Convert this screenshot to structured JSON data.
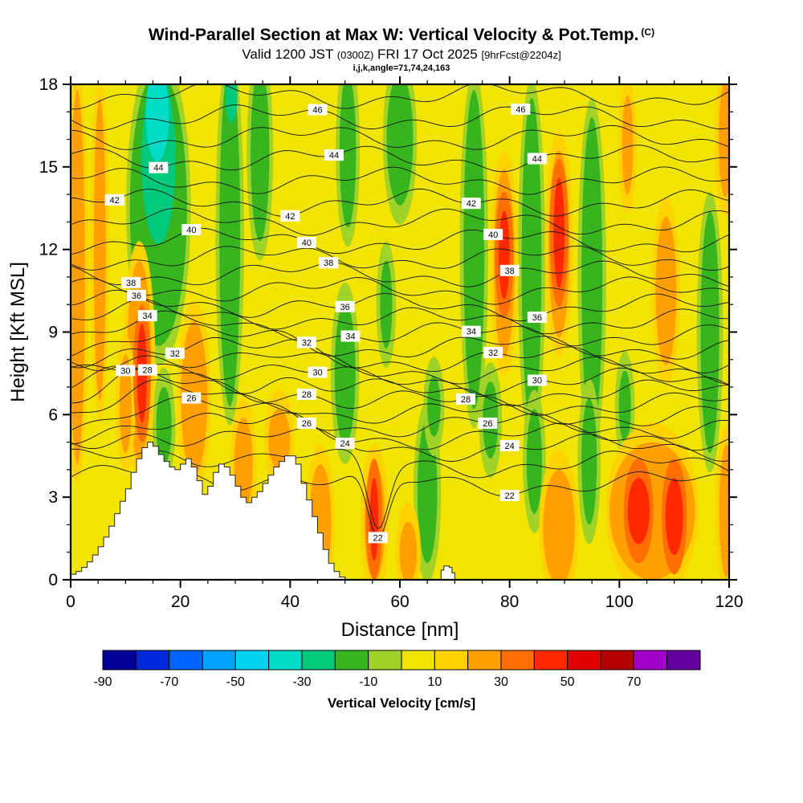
{
  "header": {
    "title": "Wind-Parallel Section at Max W: Vertical Velocity & Pot.Temp.",
    "title_unit": "(C)",
    "valid_main_1": "Valid 1200 JST",
    "valid_small_1": "(0300Z)",
    "valid_main_2": "FRI 17 Oct 2025",
    "valid_small_2": "[9hrFcst@2204z]",
    "index_line": "i,j,k,angle=71,74,24,163"
  },
  "chart_data": {
    "type": "heatmap",
    "title": "Wind-Parallel Section at Max W: Vertical Velocity & Pot.Temp. (C)",
    "subtitle": "Valid 1200 JST (0300Z) FRI 17 Oct 2025 [9hrFcst@2204z]",
    "xlabel": "Distance [nm]",
    "ylabel": "Height [Kft MSL]",
    "xlim": [
      0,
      120
    ],
    "ylim": [
      0,
      18
    ],
    "x_major_ticks": [
      0,
      20,
      40,
      60,
      80,
      100,
      120
    ],
    "x_minor_step": 5,
    "y_major_ticks": [
      0,
      3,
      6,
      9,
      12,
      15,
      18
    ],
    "y_minor_step": 1,
    "grid": false,
    "background_color": "#F0E400",
    "colorbar": {
      "label": "Vertical Velocity [cm/s]",
      "min": -90,
      "max": 90,
      "step": 10,
      "tick_values": [
        -90,
        -70,
        -50,
        -30,
        -10,
        10,
        30,
        50,
        70
      ],
      "cell_colors": [
        "#000096",
        "#0028DC",
        "#0064FF",
        "#00A0FF",
        "#00D2F0",
        "#00DCC8",
        "#00C87D",
        "#37B41E",
        "#A0D228",
        "#F0E400",
        "#FFD200",
        "#FFA000",
        "#FF6E00",
        "#FF2800",
        "#E10000",
        "#B40000",
        "#A000C8",
        "#6400A0"
      ],
      "label_color": "#1E1E8C"
    },
    "feature_colors": {
      "green": {
        "fill": "#37B41E",
        "rim": "#A0D228"
      },
      "teal": {
        "fill": "#00C87D",
        "rim": null
      },
      "cyan": {
        "fill": "#00DCC8",
        "rim": null
      },
      "orange": {
        "fill": "#FFA000",
        "rim": "#FFD200"
      },
      "red": {
        "fill": "#FF2800",
        "rim": "#FF6E00"
      }
    },
    "features": [
      {
        "c": "green",
        "x": 16,
        "y": 13.5,
        "rx": 5.2,
        "ry": 5.0
      },
      {
        "c": "green",
        "x": 29,
        "y": 12.5,
        "rx": 1.9,
        "ry": 6.2
      },
      {
        "c": "green",
        "x": 34.5,
        "y": 15.5,
        "rx": 1.7,
        "ry": 3.2
      },
      {
        "c": "green",
        "x": 17,
        "y": 5.6,
        "rx": 1.4,
        "ry": 1.4
      },
      {
        "c": "green",
        "x": 50,
        "y": 7.5,
        "rx": 1.9,
        "ry": 2.6
      },
      {
        "c": "green",
        "x": 50.5,
        "y": 15.6,
        "rx": 1.5,
        "ry": 2.8
      },
      {
        "c": "green",
        "x": 60,
        "y": 16,
        "rx": 2.4,
        "ry": 2.4
      },
      {
        "c": "green",
        "x": 65,
        "y": 3.2,
        "rx": 1.8,
        "ry": 2.6
      },
      {
        "c": "green",
        "x": 66.2,
        "y": 6.3,
        "rx": 1.2,
        "ry": 1.1
      },
      {
        "c": "green",
        "x": 73.5,
        "y": 12,
        "rx": 1.9,
        "ry": 5.8
      },
      {
        "c": "green",
        "x": 76.5,
        "y": 5.8,
        "rx": 1.4,
        "ry": 1.4
      },
      {
        "c": "green",
        "x": 84,
        "y": 11.5,
        "rx": 1.8,
        "ry": 6.0
      },
      {
        "c": "green",
        "x": 84.5,
        "y": 4.3,
        "rx": 1.4,
        "ry": 1.9
      },
      {
        "c": "green",
        "x": 95,
        "y": 11,
        "rx": 1.9,
        "ry": 5.8
      },
      {
        "c": "green",
        "x": 94.5,
        "y": 4.3,
        "rx": 1.4,
        "ry": 2.3
      },
      {
        "c": "green",
        "x": 101,
        "y": 6.3,
        "rx": 1.1,
        "ry": 1.3
      },
      {
        "c": "green",
        "x": 116.5,
        "y": 9,
        "rx": 1.7,
        "ry": 4.4
      },
      {
        "c": "green",
        "x": 57.5,
        "y": 10,
        "rx": 1.1,
        "ry": 1.6
      },
      {
        "c": "teal",
        "x": 16,
        "y": 15.3,
        "rx": 3.1,
        "ry": 3.1
      },
      {
        "c": "teal",
        "x": 29.3,
        "y": 17.6,
        "rx": 1.1,
        "ry": 1.0
      },
      {
        "c": "cyan",
        "x": 15.8,
        "y": 16.9,
        "rx": 2.1,
        "ry": 1.7
      },
      {
        "c": "orange",
        "x": 1.2,
        "y": 11,
        "rx": 1.4,
        "ry": 6.8
      },
      {
        "c": "orange",
        "x": 5.3,
        "y": 12,
        "rx": 1.1,
        "ry": 5.5
      },
      {
        "c": "orange",
        "x": 12.5,
        "y": 8.0,
        "rx": 2.2,
        "ry": 3.6
      },
      {
        "c": "orange",
        "x": 10,
        "y": 6.4,
        "rx": 1.1,
        "ry": 1.8
      },
      {
        "c": "orange",
        "x": 22.5,
        "y": 6.6,
        "rx": 2.4,
        "ry": 2.8
      },
      {
        "c": "orange",
        "x": 31.5,
        "y": 4.2,
        "rx": 1.7,
        "ry": 1.7
      },
      {
        "c": "orange",
        "x": 38,
        "y": 5.1,
        "rx": 2.0,
        "ry": 1.1
      },
      {
        "c": "orange",
        "x": 45.5,
        "y": 2.1,
        "rx": 2.0,
        "ry": 2.1
      },
      {
        "c": "orange",
        "x": 55.4,
        "y": 2.1,
        "rx": 1.9,
        "ry": 2.1
      },
      {
        "c": "orange",
        "x": 61.5,
        "y": 1.0,
        "rx": 1.6,
        "ry": 1.1
      },
      {
        "c": "orange",
        "x": 79,
        "y": 11.5,
        "rx": 1.9,
        "ry": 3.4
      },
      {
        "c": "orange",
        "x": 89,
        "y": 12.2,
        "rx": 1.9,
        "ry": 3.4
      },
      {
        "c": "orange",
        "x": 89,
        "y": 1.9,
        "rx": 2.9,
        "ry": 2.1
      },
      {
        "c": "orange",
        "x": 106,
        "y": 2.5,
        "rx": 7.8,
        "ry": 2.5
      },
      {
        "c": "orange",
        "x": 108.5,
        "y": 10.5,
        "rx": 1.9,
        "ry": 2.7
      },
      {
        "c": "orange",
        "x": 119.5,
        "y": 2.5,
        "rx": 1.3,
        "ry": 2.4
      },
      {
        "c": "orange",
        "x": 119.3,
        "y": 16,
        "rx": 1.2,
        "ry": 2.1
      },
      {
        "c": "orange",
        "x": 101.5,
        "y": 15.8,
        "rx": 1.0,
        "ry": 1.8
      },
      {
        "c": "red",
        "x": 13,
        "y": 7.5,
        "rx": 0.9,
        "ry": 1.8
      },
      {
        "c": "red",
        "x": 55.3,
        "y": 2.2,
        "rx": 0.8,
        "ry": 1.5
      },
      {
        "c": "red",
        "x": 79,
        "y": 11.8,
        "rx": 1.0,
        "ry": 1.6
      },
      {
        "c": "red",
        "x": 89,
        "y": 12.6,
        "rx": 1.0,
        "ry": 2.0
      },
      {
        "c": "red",
        "x": 103.5,
        "y": 2.5,
        "rx": 2.0,
        "ry": 1.2
      },
      {
        "c": "red",
        "x": 110,
        "y": 2.3,
        "rx": 1.6,
        "ry": 1.4
      }
    ],
    "terrain": {
      "color": "#FFFFFF",
      "profiles": [
        [
          [
            0,
            0.2
          ],
          [
            1,
            0.3
          ],
          [
            2,
            0.45
          ],
          [
            3,
            0.65
          ],
          [
            4,
            0.9
          ],
          [
            5,
            1.2
          ],
          [
            6,
            1.55
          ],
          [
            7,
            1.95
          ],
          [
            8,
            2.4
          ],
          [
            9,
            2.85
          ],
          [
            10,
            3.3
          ],
          [
            11,
            3.9
          ],
          [
            12,
            4.4
          ],
          [
            13,
            4.8
          ],
          [
            14,
            5.0
          ],
          [
            15,
            4.85
          ],
          [
            16,
            4.55
          ],
          [
            17,
            4.3
          ],
          [
            18,
            4.1
          ],
          [
            19,
            4.0
          ],
          [
            20,
            4.2
          ],
          [
            21,
            4.4
          ],
          [
            22,
            4.1
          ],
          [
            23,
            3.6
          ],
          [
            24,
            3.1
          ],
          [
            25,
            3.4
          ],
          [
            26,
            3.9
          ],
          [
            27,
            4.2
          ],
          [
            28,
            4.1
          ],
          [
            29,
            3.8
          ],
          [
            30,
            3.4
          ],
          [
            31,
            3.0
          ],
          [
            32,
            2.8
          ],
          [
            33,
            3.0
          ],
          [
            34,
            3.2
          ],
          [
            35,
            3.5
          ],
          [
            36,
            3.8
          ],
          [
            37,
            4.1
          ],
          [
            38,
            4.3
          ],
          [
            39,
            4.5
          ],
          [
            40,
            4.5
          ],
          [
            41,
            4.2
          ],
          [
            42,
            3.5
          ],
          [
            43,
            2.9
          ],
          [
            44,
            2.3
          ],
          [
            45,
            1.7
          ],
          [
            46,
            1.1
          ],
          [
            47,
            0.6
          ],
          [
            48,
            0.3
          ],
          [
            49,
            0.1
          ],
          [
            50,
            0
          ]
        ],
        [
          [
            67,
            0
          ],
          [
            67.5,
            0.35
          ],
          [
            68,
            0.5
          ],
          [
            69,
            0.45
          ],
          [
            69.5,
            0.25
          ],
          [
            70,
            0
          ]
        ]
      ]
    },
    "contours": {
      "units": "C",
      "interval": 1,
      "values": [
        22,
        23,
        24,
        25,
        26,
        27,
        28,
        29,
        30,
        31,
        32,
        33,
        34,
        35,
        36,
        37,
        38,
        39,
        40,
        41,
        42,
        43,
        44,
        45,
        46,
        47
      ],
      "base_heights": {
        "22": 3.5,
        "23": 4.2,
        "24": 4.8,
        "25": 5.2,
        "26": 5.6,
        "27": 6.0,
        "28": 6.4,
        "29": 6.8,
        "30": 7.2,
        "31": 7.6,
        "32": 8.0,
        "33": 8.45,
        "34": 8.9,
        "35": 9.4,
        "36": 9.9,
        "37": 10.5,
        "38": 11.1,
        "39": 11.7,
        "40": 12.3,
        "41": 13.0,
        "42": 13.7,
        "43": 14.5,
        "44": 15.3,
        "45": 16.05,
        "46": 16.8,
        "47": 17.6
      },
      "labels": [
        {
          "value": 46,
          "x": [
            45,
            82
          ]
        },
        {
          "value": 44,
          "x": [
            16,
            48,
            85
          ]
        },
        {
          "value": 42,
          "x": [
            8,
            40,
            73
          ]
        },
        {
          "value": 40,
          "x": [
            22,
            43,
            77
          ]
        },
        {
          "value": 38,
          "x": [
            11,
            47,
            80
          ]
        },
        {
          "value": 36,
          "x": [
            12,
            50,
            85
          ]
        },
        {
          "value": 34,
          "x": [
            14,
            51,
            73
          ]
        },
        {
          "value": 32,
          "x": [
            19,
            43,
            77
          ]
        },
        {
          "value": 30,
          "x": [
            10,
            45,
            85
          ]
        },
        {
          "value": 28,
          "x": [
            14,
            43,
            72
          ]
        },
        {
          "value": 26,
          "x": [
            22,
            43,
            76
          ]
        },
        {
          "value": 24,
          "x": [
            50,
            80
          ]
        },
        {
          "value": 22,
          "x": [
            56,
            80
          ]
        }
      ]
    }
  }
}
